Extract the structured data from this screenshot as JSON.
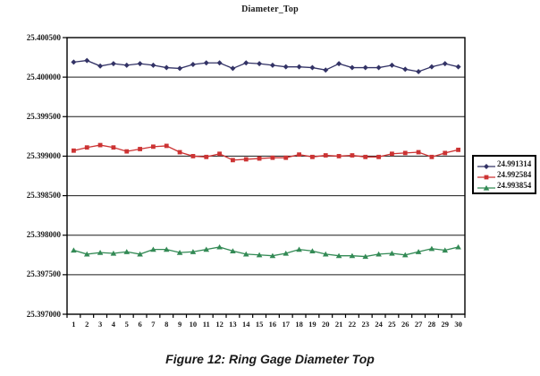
{
  "figure": {
    "title": "Diameter_Top",
    "caption": "Figure 12: Ring Gage Diameter Top"
  },
  "chart_data": {
    "type": "line",
    "title": "Diameter_Top",
    "xlabel": "",
    "ylabel": "",
    "grid": "horizontal",
    "legend_position": "right",
    "x": [
      1,
      2,
      3,
      4,
      5,
      6,
      7,
      8,
      9,
      10,
      11,
      12,
      13,
      14,
      15,
      16,
      17,
      18,
      19,
      20,
      21,
      22,
      23,
      24,
      25,
      26,
      27,
      28,
      29,
      30
    ],
    "ylim": [
      25.397,
      25.4005
    ],
    "ytick_step": 0.0005,
    "ytick_labels": [
      "25.400500",
      "25.400000",
      "25.399500",
      "25.399000",
      "25.398500",
      "25.398000",
      "25.397500",
      "25.397000"
    ],
    "series": [
      {
        "name": "24.991314",
        "marker": "diamond",
        "color": "#333366",
        "values": [
          25.40019,
          25.40021,
          25.40014,
          25.40017,
          25.40015,
          25.40017,
          25.40015,
          25.40012,
          25.40011,
          25.40016,
          25.40018,
          25.40018,
          25.40011,
          25.40018,
          25.40017,
          25.40015,
          25.40013,
          25.40013,
          25.40012,
          25.40009,
          25.40017,
          25.40012,
          25.40012,
          25.40012,
          25.40015,
          25.4001,
          25.40007,
          25.40013,
          25.40017,
          25.40013
        ]
      },
      {
        "name": "24.992584",
        "marker": "square",
        "color": "#cc3333",
        "values": [
          25.39907,
          25.39911,
          25.39914,
          25.39911,
          25.39906,
          25.39909,
          25.39912,
          25.39913,
          25.39905,
          25.399,
          25.39899,
          25.39903,
          25.39895,
          25.39896,
          25.39897,
          25.39898,
          25.39898,
          25.39902,
          25.39899,
          25.39901,
          25.399,
          25.39901,
          25.39899,
          25.39899,
          25.39903,
          25.39904,
          25.39905,
          25.39899,
          25.39904,
          25.39908
        ]
      },
      {
        "name": "24.993854",
        "marker": "triangle",
        "color": "#338a55",
        "values": [
          25.39781,
          25.39776,
          25.39778,
          25.39777,
          25.39779,
          25.39776,
          25.39782,
          25.39782,
          25.39778,
          25.39779,
          25.39782,
          25.39785,
          25.3978,
          25.39776,
          25.39775,
          25.39774,
          25.39777,
          25.39782,
          25.3978,
          25.39776,
          25.39774,
          25.39774,
          25.39773,
          25.39776,
          25.39777,
          25.39775,
          25.39779,
          25.39783,
          25.39781,
          25.39785
        ]
      }
    ]
  }
}
